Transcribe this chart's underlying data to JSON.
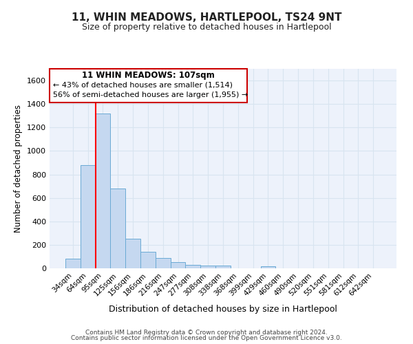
{
  "title": "11, WHIN MEADOWS, HARTLEPOOL, TS24 9NT",
  "subtitle": "Size of property relative to detached houses in Hartlepool",
  "xlabel": "Distribution of detached houses by size in Hartlepool",
  "ylabel": "Number of detached properties",
  "bin_labels": [
    "34sqm",
    "64sqm",
    "95sqm",
    "125sqm",
    "156sqm",
    "186sqm",
    "216sqm",
    "247sqm",
    "277sqm",
    "308sqm",
    "338sqm",
    "368sqm",
    "399sqm",
    "429sqm",
    "460sqm",
    "490sqm",
    "520sqm",
    "551sqm",
    "581sqm",
    "612sqm",
    "642sqm"
  ],
  "bar_values": [
    85,
    880,
    1320,
    680,
    250,
    140,
    90,
    55,
    30,
    25,
    25,
    0,
    0,
    20,
    0,
    0,
    0,
    0,
    0,
    0,
    0
  ],
  "bar_color": "#c5d8f0",
  "bar_edge_color": "#6aaad4",
  "ylim": [
    0,
    1700
  ],
  "yticks": [
    0,
    200,
    400,
    600,
    800,
    1000,
    1200,
    1400,
    1600
  ],
  "red_line_bin": 2,
  "annotation_title": "11 WHIN MEADOWS: 107sqm",
  "annotation_line1": "← 43% of detached houses are smaller (1,514)",
  "annotation_line2": "56% of semi-detached houses are larger (1,955) →",
  "footer_line1": "Contains HM Land Registry data © Crown copyright and database right 2024.",
  "footer_line2": "Contains public sector information licensed under the Open Government Licence v3.0.",
  "bg_color": "#ffffff",
  "grid_color": "#d8e4f0"
}
